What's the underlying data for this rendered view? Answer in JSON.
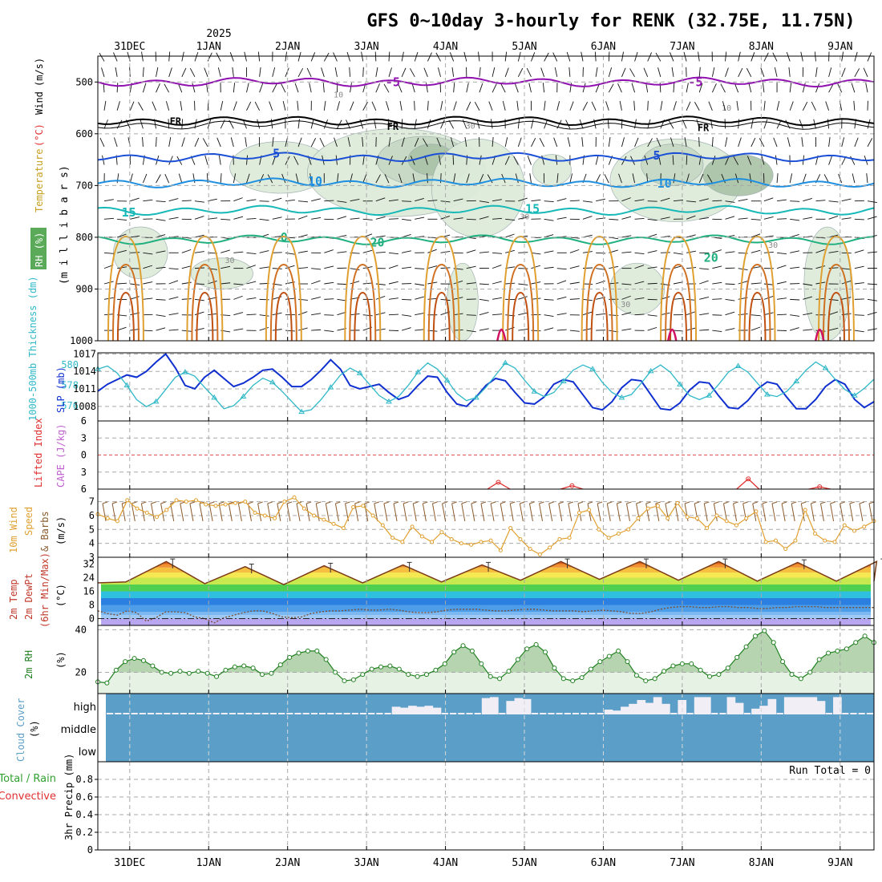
{
  "header": {
    "title": "GFS 0~10day 3-hourly for RENK (32.75E, 11.75N)",
    "year_label": "2025"
  },
  "time_axis": {
    "day_labels": [
      "31DEC",
      "1JAN",
      "2JAN",
      "3JAN",
      "4JAN",
      "5JAN",
      "6JAN",
      "7JAN",
      "8JAN",
      "9JAN"
    ],
    "day_fracs": [
      0.0411,
      0.1428,
      0.2445,
      0.3462,
      0.4479,
      0.5496,
      0.6513,
      0.753,
      0.8547,
      0.9564
    ]
  },
  "chart_data": [
    {
      "type": "line",
      "name": "upper-air",
      "ylabel_parts": [
        "RH (%)",
        "Temperature",
        "(°C)",
        "Wind",
        "(m/s)"
      ],
      "axis_label": "(m i l l i b a r s)",
      "y_ticks": [
        500,
        600,
        700,
        800,
        900,
        1000
      ],
      "ylim": [
        450,
        1000
      ],
      "isotherms": [
        {
          "label": "-5",
          "color": "#9010b0",
          "base": 500,
          "labels": [
            "-5",
            "-5"
          ]
        },
        {
          "label": "FR",
          "color": "#000000",
          "base": 575,
          "labels": [
            "FR",
            "FR",
            "FR"
          ]
        },
        {
          "label": "5",
          "color": "#1a4fd6",
          "base": 645,
          "labels": [
            "5",
            "5"
          ]
        },
        {
          "label": "10",
          "color": "#1e8fe0",
          "base": 695,
          "labels": [
            "10",
            "10"
          ]
        },
        {
          "label": "15",
          "color": "#17b8b8",
          "base": 748,
          "labels": [
            "15",
            "15"
          ]
        },
        {
          "label": "20",
          "color": "#20b080",
          "base": 805,
          "labels": [
            "20",
            "20",
            "0"
          ]
        }
      ],
      "rh_contour_labels": [
        "10",
        "10",
        "30",
        "30",
        "30",
        "30",
        "30"
      ]
    },
    {
      "type": "line",
      "name": "thickness-slp",
      "ylabel_left": "1000-500mb Thickness (dm)",
      "ylabel_right": "SLP (mb)",
      "left_ticks": [
        580,
        578,
        576
      ],
      "right_ticks": [
        1017,
        1014,
        1011,
        1008
      ],
      "left_range": [
        574.5,
        581.2
      ],
      "right_range": [
        1005.5,
        1017.2
      ],
      "series": [
        {
          "name": "1000-500mb Thickness (dm)",
          "values": [
            579.6,
            579.9,
            579.2,
            578.0,
            576.6,
            575.9,
            576.4,
            577.6,
            578.8,
            579.3,
            578.9,
            577.8,
            576.8,
            575.7,
            576.0,
            576.9,
            578.0,
            578.7,
            578.3,
            577.4,
            576.4,
            575.4,
            575.6,
            576.6,
            577.8,
            579.0,
            579.7,
            579.2,
            578.1,
            577.0,
            576.4,
            576.9,
            578.0,
            579.3,
            580.2,
            579.6,
            578.5,
            577.2,
            576.5,
            576.8,
            577.8,
            579.0,
            580.2,
            579.7,
            578.5,
            577.4,
            576.9,
            577.3,
            578.4,
            579.5,
            580.0,
            579.6,
            578.3,
            577.3,
            576.8,
            577.1,
            578.2,
            579.4,
            580.0,
            579.3,
            578.1,
            577.0,
            576.6,
            577.0,
            578.1,
            579.3,
            579.9,
            579.3,
            578.2,
            577.1,
            576.9,
            577.4,
            578.4,
            579.5,
            580.3,
            579.7,
            578.6,
            577.6,
            577.0,
            577.7,
            578.6
          ]
        },
        {
          "name": "SLP (mb)",
          "values": [
            1010.6,
            1011.8,
            1012.6,
            1013.4,
            1013.0,
            1014.0,
            1015.6,
            1017.0,
            1014.6,
            1011.6,
            1011.0,
            1013.0,
            1014.2,
            1012.8,
            1011.4,
            1012.0,
            1013.0,
            1014.2,
            1014.4,
            1013.0,
            1011.4,
            1011.4,
            1012.6,
            1014.2,
            1016.0,
            1014.4,
            1011.6,
            1011.0,
            1011.4,
            1011.8,
            1010.4,
            1009.2,
            1009.8,
            1011.6,
            1013.2,
            1013.0,
            1010.4,
            1008.4,
            1008.0,
            1009.6,
            1011.6,
            1012.8,
            1012.4,
            1010.4,
            1008.6,
            1008.4,
            1009.6,
            1011.8,
            1012.6,
            1012.2,
            1010.0,
            1007.8,
            1007.4,
            1008.8,
            1011.2,
            1012.6,
            1012.4,
            1010.0,
            1007.6,
            1007.4,
            1008.6,
            1010.8,
            1012.2,
            1012.0,
            1009.8,
            1007.8,
            1007.6,
            1009.0,
            1011.0,
            1012.2,
            1011.8,
            1009.6,
            1007.6,
            1007.6,
            1009.2,
            1011.4,
            1012.6,
            1011.8,
            1009.2,
            1007.8,
            1008.8
          ]
        }
      ]
    },
    {
      "type": "line",
      "name": "stability",
      "ylabel_left": "Lifted Index",
      "ylabel_right": "CAPE (J/kg)",
      "y_ticks": [
        -6,
        -3,
        0,
        3,
        6
      ],
      "ylim": [
        -6,
        6
      ],
      "series": [
        {
          "name": "Lifted Index",
          "segments": [
            {
              "x": [
                0.502,
                0.516,
                0.531
              ],
              "y": [
                6.0,
                4.8,
                6.0
              ]
            },
            {
              "x": [
                0.596,
                0.611,
                0.625
              ],
              "y": [
                6.0,
                5.4,
                6.0
              ]
            },
            {
              "x": [
                0.823,
                0.838,
                0.852
              ],
              "y": [
                6.0,
                4.2,
                6.0
              ]
            },
            {
              "x": [
                0.916,
                0.93,
                0.944
              ],
              "y": [
                6.0,
                5.6,
                6.0
              ]
            }
          ]
        }
      ]
    },
    {
      "type": "line",
      "name": "10m-wind",
      "ylabel_parts": [
        "10m Wind",
        "Speed",
        "& Barbs",
        "(m/s)"
      ],
      "y_ticks": [
        3,
        4,
        5,
        6,
        7
      ],
      "ylim": [
        3,
        7.9
      ],
      "series": [
        {
          "name": "Speed",
          "values": [
            6.1,
            5.8,
            5.6,
            7.1,
            6.5,
            6.2,
            5.9,
            6.4,
            7.1,
            7.0,
            7.1,
            6.8,
            6.7,
            6.8,
            6.9,
            7.0,
            6.2,
            6.0,
            5.8,
            7.0,
            7.3,
            6.5,
            6.0,
            5.7,
            5.4,
            5.1,
            6.6,
            6.7,
            6.0,
            5.3,
            4.4,
            4.1,
            5.2,
            4.5,
            4.1,
            4.8,
            4.3,
            4.0,
            3.9,
            4.1,
            4.2,
            3.5,
            5.1,
            4.3,
            3.6,
            3.2,
            3.7,
            4.3,
            4.4,
            6.2,
            6.4,
            5.0,
            4.4,
            4.7,
            5.0,
            5.8,
            6.5,
            6.7,
            5.8,
            6.9,
            5.9,
            5.8,
            5.1,
            6.0,
            5.6,
            5.3,
            5.8,
            6.3,
            4.1,
            4.2,
            3.6,
            4.2,
            6.4,
            4.7,
            4.2,
            4.1,
            5.3,
            4.9,
            5.2,
            5.6
          ]
        }
      ]
    },
    {
      "type": "area",
      "name": "2m-temperature",
      "ylabel_parts": [
        "2m Temp",
        "2m DewPt",
        "(6hr Min/Max)",
        "(°C)"
      ],
      "y_ticks": [
        0,
        8,
        16,
        24,
        32
      ],
      "ylim": [
        -4,
        36
      ],
      "series": [
        {
          "name": "2m Temp",
          "peaks": [
            33.5,
            30.5,
            31.0,
            31.5,
            31.5,
            33.5,
            33.5,
            33.5,
            33.0,
            33.5
          ],
          "troughs": [
            21.5,
            20.5,
            20.0,
            21.0,
            21.5,
            22.5,
            23.0,
            22.5,
            22.0,
            22.0
          ]
        },
        {
          "name": "2m DewPt",
          "values": [
            4.5,
            3.0,
            2.0,
            4.5,
            3.5,
            -1.5,
            0.5,
            4.0,
            4.0,
            3.5,
            1.0,
            0.0,
            -2.5,
            0.5,
            2.0,
            3.5,
            4.5,
            4.5,
            3.0,
            1.0,
            0.5,
            1.0,
            3.0,
            4.0,
            4.5,
            4.5,
            5.0,
            5.5,
            5.0,
            5.0,
            5.5,
            5.0,
            4.0,
            3.5,
            3.5,
            4.0,
            5.0,
            5.5,
            5.5,
            5.5,
            5.0,
            4.5,
            4.5,
            5.0,
            5.5,
            5.5,
            5.0,
            4.5,
            4.5,
            4.5,
            4.0,
            4.5,
            5.0,
            4.5,
            4.0,
            3.0,
            3.0,
            4.0,
            5.5,
            6.5,
            7.0,
            7.0,
            6.5,
            6.5,
            7.0,
            7.0,
            6.5,
            6.5,
            6.0,
            6.0,
            6.5,
            6.5,
            7.0,
            7.0,
            7.0,
            6.5,
            6.5,
            6.5,
            6.5,
            6.5,
            6.5
          ]
        }
      ]
    },
    {
      "type": "area",
      "name": "2m-rh",
      "ylabel_parts": [
        "2m RH",
        "(%)"
      ],
      "y_ticks": [
        20,
        40
      ],
      "ylim": [
        10,
        42
      ],
      "series": [
        {
          "name": "2m RH",
          "values": [
            15.5,
            15,
            21,
            25,
            26.5,
            25.5,
            23,
            20,
            19.5,
            20.5,
            19.5,
            20.5,
            19.5,
            18,
            21,
            22.5,
            23,
            22,
            19,
            19.5,
            23.5,
            27,
            29,
            30,
            30,
            26,
            20,
            16,
            16.5,
            19,
            21.5,
            22.5,
            23,
            21.5,
            19,
            18,
            19,
            21,
            24,
            29.5,
            32.5,
            30,
            24,
            18,
            17,
            20.5,
            26,
            31,
            33,
            29.5,
            22,
            17,
            16,
            17.5,
            21.5,
            25,
            27.5,
            30,
            25,
            18.5,
            16,
            17,
            20.5,
            23,
            24,
            24,
            21,
            18,
            19,
            22,
            27,
            32,
            37,
            39.5,
            34,
            25,
            19,
            17,
            20,
            26,
            29,
            30,
            31,
            34,
            37,
            34
          ]
        }
      ]
    },
    {
      "type": "bar",
      "name": "cloud-cover",
      "ylabel_parts": [
        "Cloud Cover",
        "(%)"
      ],
      "level_labels": [
        "high",
        "middle",
        "low"
      ],
      "series": [
        {
          "name": "high",
          "values": [
            0,
            0,
            0,
            0,
            0,
            0,
            0,
            0,
            0,
            0,
            0,
            0,
            0,
            0,
            0,
            0,
            0,
            0,
            0,
            0,
            0,
            0,
            0,
            0,
            0,
            0,
            0,
            0,
            0,
            0,
            0,
            0,
            0,
            0,
            0,
            40,
            35,
            45,
            40,
            45,
            35,
            0,
            0,
            0,
            0,
            0,
            85,
            90,
            0,
            70,
            85,
            80,
            0,
            0,
            0,
            0,
            0,
            0,
            0,
            0,
            0,
            25,
            20,
            40,
            55,
            75,
            60,
            90,
            55,
            0,
            75,
            0,
            90,
            90,
            0,
            0,
            90,
            60,
            0,
            30,
            45,
            80,
            0,
            90,
            90,
            90,
            90,
            70,
            0,
            90,
            0,
            0,
            0,
            0
          ]
        }
      ]
    },
    {
      "type": "bar",
      "name": "precip",
      "ylabel_left_parts": [
        "Total / Rain",
        "Convective"
      ],
      "ylabel": "3hr Precip (mm)",
      "run_total": "Run Total = 0",
      "y_ticks": [
        "0.8",
        "0.6",
        "0.4",
        "0.2",
        "0"
      ],
      "ylim": [
        0,
        1
      ],
      "series": [
        {
          "name": "Total / Rain",
          "values": []
        },
        {
          "name": "Convective",
          "values": []
        }
      ]
    }
  ],
  "colors": {
    "grid": "#a9a9a9",
    "thickness": "#30b8c8",
    "slp": "#1030d0",
    "lifted_index": "#e03030",
    "cape": "#c060d0",
    "wind_speed": "#e0a030",
    "barb": "#8b5a2b",
    "rh": "#208020",
    "cloud_bg": "#5b9fc8",
    "cloud_high": "#f2eef6"
  }
}
